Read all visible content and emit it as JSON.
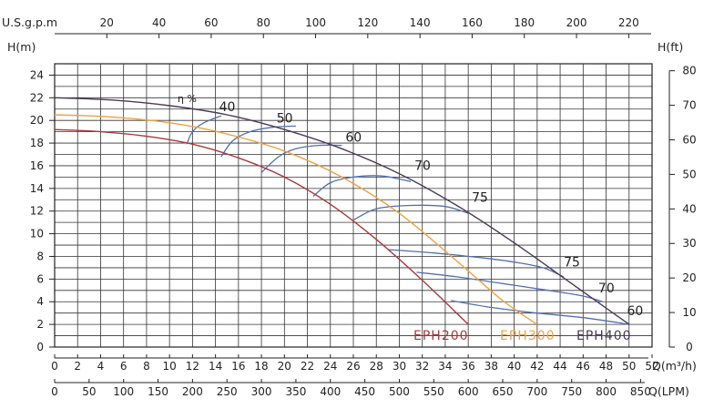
{
  "chart_data": {
    "type": "line",
    "title": "",
    "axes": {
      "left_label": "H(m)",
      "right_label": "H(ft)",
      "top_label": "U.S.g.p.m",
      "bottom_label_m3h": "Q(m³/h)",
      "bottom_label_lpm": "Q(LPM)"
    },
    "xlim_m3h": [
      0,
      52
    ],
    "ylim_m": [
      0,
      25
    ],
    "grid": true,
    "x_ticks_m3h": [
      "0",
      "2",
      "4",
      "6",
      "8",
      "10",
      "12",
      "14",
      "16",
      "18",
      "20",
      "22",
      "24",
      "26",
      "28",
      "30",
      "32",
      "34",
      "36",
      "38",
      "40",
      "42",
      "44",
      "46",
      "48",
      "50",
      "52"
    ],
    "x_ticks_lpm": [
      "0",
      "50",
      "100",
      "150",
      "200",
      "250",
      "300",
      "350",
      "400",
      "450",
      "500",
      "550",
      "600",
      "650",
      "700",
      "750",
      "800",
      "850"
    ],
    "x_ticks_gpm": [
      "20",
      "40",
      "60",
      "80",
      "100",
      "120",
      "140",
      "160",
      "180",
      "200",
      "220"
    ],
    "y_ticks_m": [
      "0",
      "2",
      "4",
      "6",
      "8",
      "10",
      "12",
      "14",
      "16",
      "18",
      "20",
      "22",
      "24"
    ],
    "y_ticks_ft": [
      "0",
      "10",
      "20",
      "30",
      "40",
      "50",
      "60",
      "70",
      "80"
    ],
    "series": [
      {
        "name": "EPH200",
        "color": "#a83a3a",
        "x": [
          0,
          4,
          8,
          12,
          16,
          20,
          24,
          28,
          32,
          36
        ],
        "y": [
          19.2,
          19.0,
          18.6,
          17.9,
          16.7,
          15.0,
          12.6,
          9.5,
          5.9,
          2.0
        ]
      },
      {
        "name": "EPH300",
        "color": "#f0a040",
        "x": [
          0,
          5,
          10,
          15,
          20,
          25,
          30,
          35,
          39,
          42
        ],
        "y": [
          20.5,
          20.3,
          19.8,
          18.8,
          17.3,
          15.0,
          11.8,
          7.6,
          4.1,
          2.0
        ]
      },
      {
        "name": "EPH400",
        "color": "#4a3a5a",
        "x": [
          0,
          5,
          10,
          15,
          20,
          25,
          30,
          35,
          40,
          45,
          50
        ],
        "y": [
          22.0,
          21.8,
          21.3,
          20.5,
          19.2,
          17.5,
          15.3,
          12.5,
          9.2,
          5.6,
          2.0
        ]
      }
    ],
    "efficiency_label": "η %",
    "efficiency_curves": [
      {
        "label": "40",
        "color": "#5070b0",
        "x": [
          11.5,
          12,
          13,
          14.5
        ],
        "y": [
          17.9,
          19.0,
          19.8,
          20.4
        ]
      },
      {
        "label": "50",
        "color": "#5070b0",
        "x": [
          14.5,
          15.5,
          17,
          19,
          21
        ],
        "y": [
          16.8,
          18.2,
          19.0,
          19.4,
          19.5
        ]
      },
      {
        "label": "60",
        "color": "#5070b0",
        "x": [
          18,
          19.5,
          21,
          23,
          25
        ],
        "y": [
          15.4,
          16.8,
          17.5,
          17.8,
          17.8
        ]
      },
      {
        "label": "70",
        "color": "#5070b0",
        "x": [
          22.5,
          24,
          26,
          28.5,
          31
        ],
        "y": [
          13.3,
          14.5,
          15.0,
          15.1,
          14.6
        ]
      },
      {
        "label": "75",
        "color": "#5070b0",
        "x": [
          26,
          28,
          31,
          34,
          36
        ],
        "y": [
          11.2,
          12.2,
          12.5,
          12.4,
          11.8
        ]
      },
      {
        "label": "75",
        "color": "#5070b0",
        "x": [
          29,
          33,
          37,
          40,
          42.5,
          44.3
        ],
        "y": [
          8.6,
          8.3,
          7.9,
          7.5,
          7.0,
          6.2
        ]
      },
      {
        "label": "70",
        "color": "#5070b0",
        "x": [
          31.5,
          35,
          39,
          43,
          46,
          47.7
        ],
        "y": [
          6.6,
          6.2,
          5.6,
          5.0,
          4.5,
          4.0
        ]
      },
      {
        "label": "60",
        "color": "#5070b0",
        "x": [
          34.5,
          38,
          42,
          46,
          50
        ],
        "y": [
          4.1,
          3.5,
          3.0,
          2.6,
          2.0
        ]
      }
    ],
    "legend": [
      {
        "label": "EPH200",
        "color": "#a83a3a"
      },
      {
        "label": "EPH300",
        "color": "#f0a040"
      },
      {
        "label": "EPH400",
        "color": "#4a3a5a"
      }
    ]
  }
}
